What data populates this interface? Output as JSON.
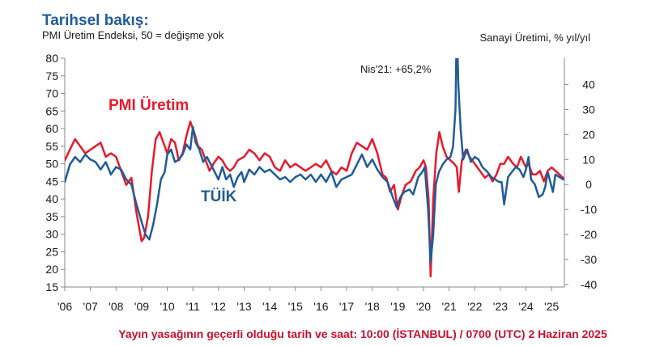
{
  "header": {
    "title": "Tarihsel bakış:",
    "subtitle": "PMI Üretim Endeksi, 50 = değişme yok",
    "right_axis_title": "Sanayi Üretimi, % yıl/yıl"
  },
  "footer": {
    "embargo": "Yayın yasağının geçerli olduğu tarih ve saat: 10:00 (İSTANBUL) / 0700 (UTC) 2 Haziran 2025"
  },
  "colors": {
    "pmi": "#e8192c",
    "tuik": "#1f5c99",
    "axis": "#888888",
    "footer": "#c8102e",
    "title": "#1f5c99"
  },
  "chart_data": {
    "type": "line",
    "x_range": [
      2006.0,
      2025.5
    ],
    "x_ticks": [
      {
        "x": 2006,
        "label": "'06"
      },
      {
        "x": 2007,
        "label": "'07"
      },
      {
        "x": 2008,
        "label": "'08"
      },
      {
        "x": 2009,
        "label": "'09"
      },
      {
        "x": 2010,
        "label": "'10"
      },
      {
        "x": 2011,
        "label": "'11"
      },
      {
        "x": 2012,
        "label": "'12"
      },
      {
        "x": 2013,
        "label": "'13"
      },
      {
        "x": 2014,
        "label": "'14"
      },
      {
        "x": 2015,
        "label": "'15"
      },
      {
        "x": 2016,
        "label": "'16"
      },
      {
        "x": 2017,
        "label": "'17"
      },
      {
        "x": 2018,
        "label": "'18"
      },
      {
        "x": 2019,
        "label": "'19"
      },
      {
        "x": 2020,
        "label": "'20"
      },
      {
        "x": 2021,
        "label": "'21"
      },
      {
        "x": 2022,
        "label": "'22"
      },
      {
        "x": 2023,
        "label": "'23"
      },
      {
        "x": 2024,
        "label": "'24"
      },
      {
        "x": 2025,
        "label": "'25"
      }
    ],
    "y_left": {
      "min": 15,
      "max": 80,
      "ticks": [
        "15",
        "20",
        "25",
        "30",
        "35",
        "40",
        "45",
        "50",
        "55",
        "60",
        "65",
        "70",
        "75",
        "80"
      ]
    },
    "y_right": {
      "min": -40,
      "max": 45,
      "ticks": [
        "40",
        "30",
        "20",
        "10",
        "0",
        "-10",
        "-20",
        "-30",
        "-40"
      ]
    },
    "series": [
      {
        "name": "PMI Üretim",
        "axis": "left",
        "points": [
          [
            2006.0,
            51
          ],
          [
            2006.2,
            54
          ],
          [
            2006.4,
            57
          ],
          [
            2006.6,
            55
          ],
          [
            2006.8,
            53
          ],
          [
            2007.0,
            54
          ],
          [
            2007.2,
            55
          ],
          [
            2007.4,
            56
          ],
          [
            2007.6,
            52
          ],
          [
            2007.8,
            53
          ],
          [
            2008.0,
            52
          ],
          [
            2008.2,
            48
          ],
          [
            2008.4,
            44
          ],
          [
            2008.6,
            46
          ],
          [
            2008.8,
            36
          ],
          [
            2009.0,
            28
          ],
          [
            2009.1,
            29
          ],
          [
            2009.25,
            35
          ],
          [
            2009.4,
            48
          ],
          [
            2009.55,
            57
          ],
          [
            2009.7,
            59
          ],
          [
            2009.85,
            56
          ],
          [
            2010.0,
            53
          ],
          [
            2010.15,
            57
          ],
          [
            2010.3,
            56
          ],
          [
            2010.45,
            51
          ],
          [
            2010.6,
            53
          ],
          [
            2010.75,
            58
          ],
          [
            2010.9,
            62
          ],
          [
            2011.05,
            59
          ],
          [
            2011.2,
            55
          ],
          [
            2011.35,
            54
          ],
          [
            2011.5,
            51
          ],
          [
            2011.65,
            48
          ],
          [
            2011.8,
            50
          ],
          [
            2012.0,
            52
          ],
          [
            2012.15,
            51
          ],
          [
            2012.3,
            49
          ],
          [
            2012.45,
            48
          ],
          [
            2012.6,
            49
          ],
          [
            2012.75,
            51
          ],
          [
            2013.0,
            52
          ],
          [
            2013.2,
            54
          ],
          [
            2013.4,
            53
          ],
          [
            2013.6,
            51
          ],
          [
            2013.8,
            53
          ],
          [
            2014.0,
            52
          ],
          [
            2014.2,
            49
          ],
          [
            2014.4,
            48
          ],
          [
            2014.6,
            51
          ],
          [
            2014.8,
            49
          ],
          [
            2015.0,
            50
          ],
          [
            2015.2,
            49
          ],
          [
            2015.4,
            48
          ],
          [
            2015.6,
            49
          ],
          [
            2015.8,
            50
          ],
          [
            2016.0,
            49
          ],
          [
            2016.2,
            51
          ],
          [
            2016.4,
            48
          ],
          [
            2016.6,
            47
          ],
          [
            2016.8,
            49
          ],
          [
            2017.0,
            48
          ],
          [
            2017.2,
            53
          ],
          [
            2017.4,
            56
          ],
          [
            2017.6,
            55
          ],
          [
            2017.8,
            54
          ],
          [
            2018.0,
            57
          ],
          [
            2018.2,
            53
          ],
          [
            2018.4,
            47
          ],
          [
            2018.55,
            46
          ],
          [
            2018.7,
            42
          ],
          [
            2018.85,
            44
          ],
          [
            2019.0,
            37
          ],
          [
            2019.15,
            41
          ],
          [
            2019.3,
            44
          ],
          [
            2019.5,
            45
          ],
          [
            2019.7,
            48
          ],
          [
            2019.85,
            49
          ],
          [
            2020.0,
            51
          ],
          [
            2020.1,
            49
          ],
          [
            2020.2,
            40
          ],
          [
            2020.28,
            18
          ],
          [
            2020.38,
            40
          ],
          [
            2020.5,
            53
          ],
          [
            2020.62,
            59
          ],
          [
            2020.75,
            55
          ],
          [
            2020.9,
            52
          ],
          [
            2021.05,
            51
          ],
          [
            2021.2,
            50
          ],
          [
            2021.3,
            49
          ],
          [
            2021.38,
            42
          ],
          [
            2021.5,
            51
          ],
          [
            2021.65,
            54
          ],
          [
            2021.8,
            52
          ],
          [
            2022.0,
            50
          ],
          [
            2022.2,
            48
          ],
          [
            2022.4,
            46
          ],
          [
            2022.55,
            47
          ],
          [
            2022.7,
            45
          ],
          [
            2022.85,
            47
          ],
          [
            2023.0,
            50
          ],
          [
            2023.15,
            50
          ],
          [
            2023.3,
            52
          ],
          [
            2023.5,
            50
          ],
          [
            2023.65,
            49
          ],
          [
            2023.8,
            52
          ],
          [
            2024.0,
            49
          ],
          [
            2024.1,
            50
          ],
          [
            2024.25,
            47
          ],
          [
            2024.4,
            47
          ],
          [
            2024.55,
            48
          ],
          [
            2024.7,
            45
          ],
          [
            2024.85,
            48
          ],
          [
            2025.0,
            49
          ],
          [
            2025.15,
            48
          ],
          [
            2025.3,
            47
          ],
          [
            2025.45,
            46
          ]
        ]
      },
      {
        "name": "TÜİK",
        "axis": "right",
        "points": [
          [
            2006.0,
            1
          ],
          [
            2006.2,
            8
          ],
          [
            2006.4,
            11
          ],
          [
            2006.6,
            9
          ],
          [
            2006.8,
            12
          ],
          [
            2007.0,
            10
          ],
          [
            2007.2,
            9
          ],
          [
            2007.4,
            6
          ],
          [
            2007.6,
            9
          ],
          [
            2007.8,
            4
          ],
          [
            2008.0,
            7
          ],
          [
            2008.2,
            6
          ],
          [
            2008.4,
            2
          ],
          [
            2008.6,
            0
          ],
          [
            2008.8,
            -8
          ],
          [
            2009.0,
            -15
          ],
          [
            2009.15,
            -20
          ],
          [
            2009.3,
            -22
          ],
          [
            2009.45,
            -16
          ],
          [
            2009.6,
            -8
          ],
          [
            2009.75,
            2
          ],
          [
            2009.9,
            5
          ],
          [
            2010.0,
            12
          ],
          [
            2010.15,
            14
          ],
          [
            2010.3,
            9
          ],
          [
            2010.45,
            10
          ],
          [
            2010.6,
            12
          ],
          [
            2010.75,
            16
          ],
          [
            2010.9,
            14
          ],
          [
            2011.0,
            23
          ],
          [
            2011.1,
            17
          ],
          [
            2011.25,
            14
          ],
          [
            2011.4,
            9
          ],
          [
            2011.55,
            11
          ],
          [
            2011.7,
            8
          ],
          [
            2011.85,
            5
          ],
          [
            2012.0,
            2
          ],
          [
            2012.15,
            7
          ],
          [
            2012.3,
            2
          ],
          [
            2012.45,
            4
          ],
          [
            2012.6,
            -1
          ],
          [
            2012.75,
            3
          ],
          [
            2012.9,
            5
          ],
          [
            2013.0,
            1
          ],
          [
            2013.2,
            6
          ],
          [
            2013.4,
            4
          ],
          [
            2013.6,
            7
          ],
          [
            2013.8,
            5
          ],
          [
            2014.0,
            6
          ],
          [
            2014.2,
            4
          ],
          [
            2014.4,
            2
          ],
          [
            2014.6,
            3
          ],
          [
            2014.8,
            1
          ],
          [
            2015.0,
            3
          ],
          [
            2015.2,
            4
          ],
          [
            2015.4,
            2
          ],
          [
            2015.6,
            4
          ],
          [
            2015.8,
            1
          ],
          [
            2016.0,
            4
          ],
          [
            2016.2,
            1
          ],
          [
            2016.4,
            5
          ],
          [
            2016.6,
            -1
          ],
          [
            2016.8,
            2
          ],
          [
            2017.0,
            3
          ],
          [
            2017.2,
            4
          ],
          [
            2017.4,
            8
          ],
          [
            2017.6,
            12
          ],
          [
            2017.8,
            7
          ],
          [
            2018.0,
            10
          ],
          [
            2018.2,
            6
          ],
          [
            2018.4,
            3
          ],
          [
            2018.6,
            1
          ],
          [
            2018.8,
            -5
          ],
          [
            2018.95,
            -9
          ],
          [
            2019.1,
            -5
          ],
          [
            2019.25,
            -3
          ],
          [
            2019.45,
            -2
          ],
          [
            2019.6,
            -4
          ],
          [
            2019.8,
            3
          ],
          [
            2019.95,
            5
          ],
          [
            2020.05,
            7
          ],
          [
            2020.18,
            -10
          ],
          [
            2020.28,
            -31
          ],
          [
            2020.38,
            -20
          ],
          [
            2020.48,
            0
          ],
          [
            2020.6,
            5
          ],
          [
            2020.75,
            8
          ],
          [
            2020.9,
            10
          ],
          [
            2021.05,
            11
          ],
          [
            2021.15,
            15
          ],
          [
            2021.25,
            30
          ],
          [
            2021.3,
            65
          ],
          [
            2021.36,
            40
          ],
          [
            2021.45,
            22
          ],
          [
            2021.55,
            10
          ],
          [
            2021.7,
            14
          ],
          [
            2021.85,
            9
          ],
          [
            2022.0,
            11
          ],
          [
            2022.15,
            10
          ],
          [
            2022.3,
            7
          ],
          [
            2022.5,
            5
          ],
          [
            2022.65,
            3
          ],
          [
            2022.8,
            2
          ],
          [
            2022.95,
            1
          ],
          [
            2023.05,
            1
          ],
          [
            2023.15,
            -8
          ],
          [
            2023.3,
            3
          ],
          [
            2023.45,
            5
          ],
          [
            2023.6,
            7
          ],
          [
            2023.75,
            6
          ],
          [
            2023.9,
            3
          ],
          [
            2024.0,
            6
          ],
          [
            2024.1,
            11
          ],
          [
            2024.2,
            2
          ],
          [
            2024.35,
            0
          ],
          [
            2024.5,
            -5
          ],
          [
            2024.65,
            -4
          ],
          [
            2024.75,
            -1
          ],
          [
            2024.85,
            5
          ],
          [
            2024.95,
            1
          ],
          [
            2025.05,
            -3
          ],
          [
            2025.15,
            4
          ],
          [
            2025.3,
            3
          ],
          [
            2025.45,
            2
          ]
        ]
      }
    ],
    "annotations": [
      {
        "text": "PMI Üretim",
        "series": "PMI Üretim"
      },
      {
        "text": "TÜİK",
        "series": "TÜİK"
      },
      {
        "text": "Nis'21: +65,2%",
        "series": "TÜİK"
      }
    ]
  }
}
